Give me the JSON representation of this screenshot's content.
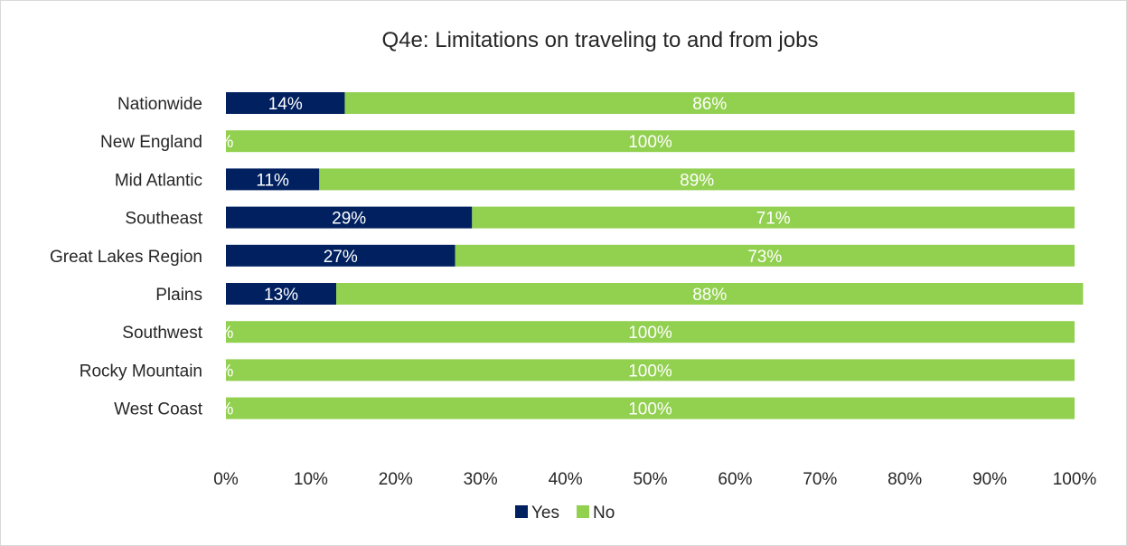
{
  "chart_data": {
    "type": "bar",
    "orientation": "horizontal",
    "stacked": true,
    "title": "Q4e: Limitations on traveling to and from jobs",
    "categories": [
      "Nationwide",
      "New England",
      "Mid Atlantic",
      "Southeast",
      "Great Lakes Region",
      "Plains",
      "Southwest",
      "Rocky Mountain",
      "West Coast"
    ],
    "series": [
      {
        "name": "Yes",
        "color": "#002060",
        "values": [
          14,
          0,
          11,
          29,
          27,
          13,
          0,
          0,
          0
        ],
        "labels": [
          "14%",
          "%",
          "11%",
          "29%",
          "27%",
          "13%",
          "%",
          "%",
          "%"
        ]
      },
      {
        "name": "No",
        "color": "#92d050",
        "values": [
          86,
          100,
          89,
          71,
          73,
          88,
          100,
          100,
          100
        ],
        "labels": [
          "86%",
          "100%",
          "89%",
          "71%",
          "73%",
          "88%",
          "100%",
          "100%",
          "100%"
        ]
      }
    ],
    "xlim": [
      0,
      100
    ],
    "x_ticks": [
      "0%",
      "10%",
      "20%",
      "30%",
      "40%",
      "50%",
      "60%",
      "70%",
      "80%",
      "90%",
      "100%"
    ],
    "grid": false,
    "legend_position": "bottom"
  }
}
